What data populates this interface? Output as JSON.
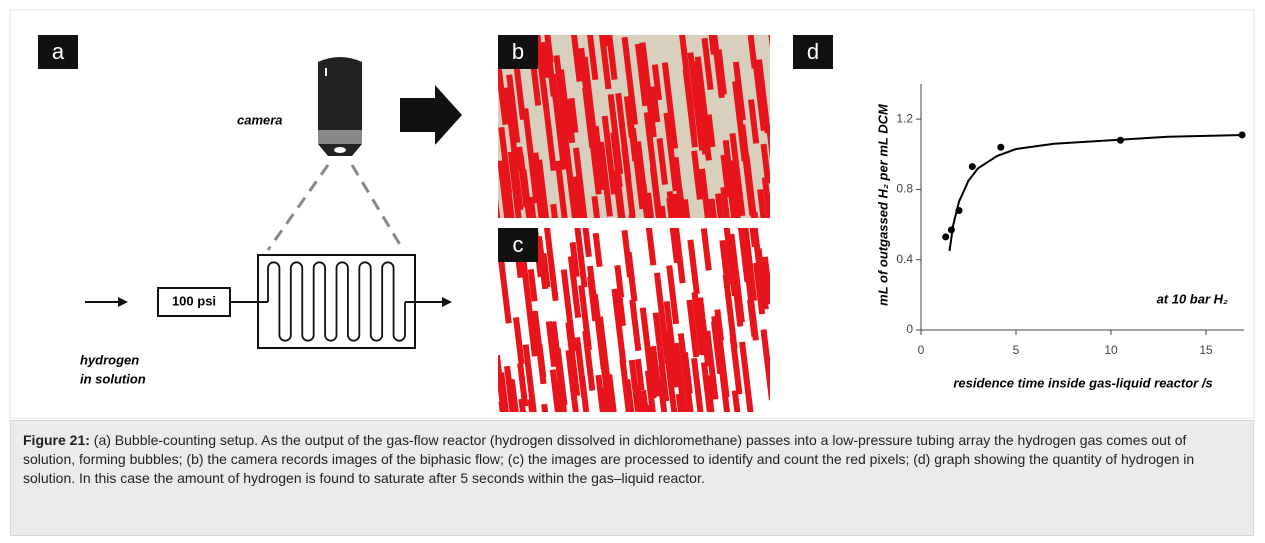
{
  "panels": {
    "a": {
      "label": "a",
      "camera": "camera",
      "pressure": "100 psi",
      "input_line1": "hydrogen",
      "input_line2": "in solution"
    },
    "b": {
      "label": "b"
    },
    "c": {
      "label": "c"
    }
  },
  "chart_data": {
    "type": "scatter",
    "label": "d",
    "xlabel": "residence time inside gas-liquid reactor /s",
    "ylabel": "mL of outgassed H₂ per mL DCM",
    "annotation": "at 10 bar H₂",
    "x": [
      1.3,
      1.6,
      2.0,
      2.7,
      4.2,
      10.5,
      16.9
    ],
    "values": [
      0.53,
      0.57,
      0.68,
      0.93,
      1.04,
      1.08,
      1.11
    ],
    "color": "#000000",
    "fit": {
      "x": [
        1.5,
        1.7,
        2,
        2.5,
        3,
        4,
        5,
        7,
        10,
        13,
        17
      ],
      "values": [
        0.45,
        0.6,
        0.73,
        0.85,
        0.92,
        0.99,
        1.03,
        1.06,
        1.08,
        1.1,
        1.11
      ]
    },
    "xlim": [
      0,
      17
    ],
    "ylim": [
      0,
      1.4
    ],
    "xticks": [
      0,
      5,
      10,
      15
    ],
    "yticks": [
      0,
      0.4,
      0.8,
      1.2
    ]
  },
  "caption": {
    "label": "Figure 21:",
    "text": "(a) Bubble-counting setup. As the output of the gas-flow reactor (hydrogen dissolved in dichloromethane) passes into a low-pressure tubing array the hydrogen gas comes out of solution, forming bubbles; (b) the camera records images of the biphasic flow; (c) the images are processed to identify and count the red pixels; (d) graph showing the quantity of hydrogen in solution. In this case the amount of hydrogen is found to saturate after 5 seconds within the gas–liquid reactor."
  }
}
